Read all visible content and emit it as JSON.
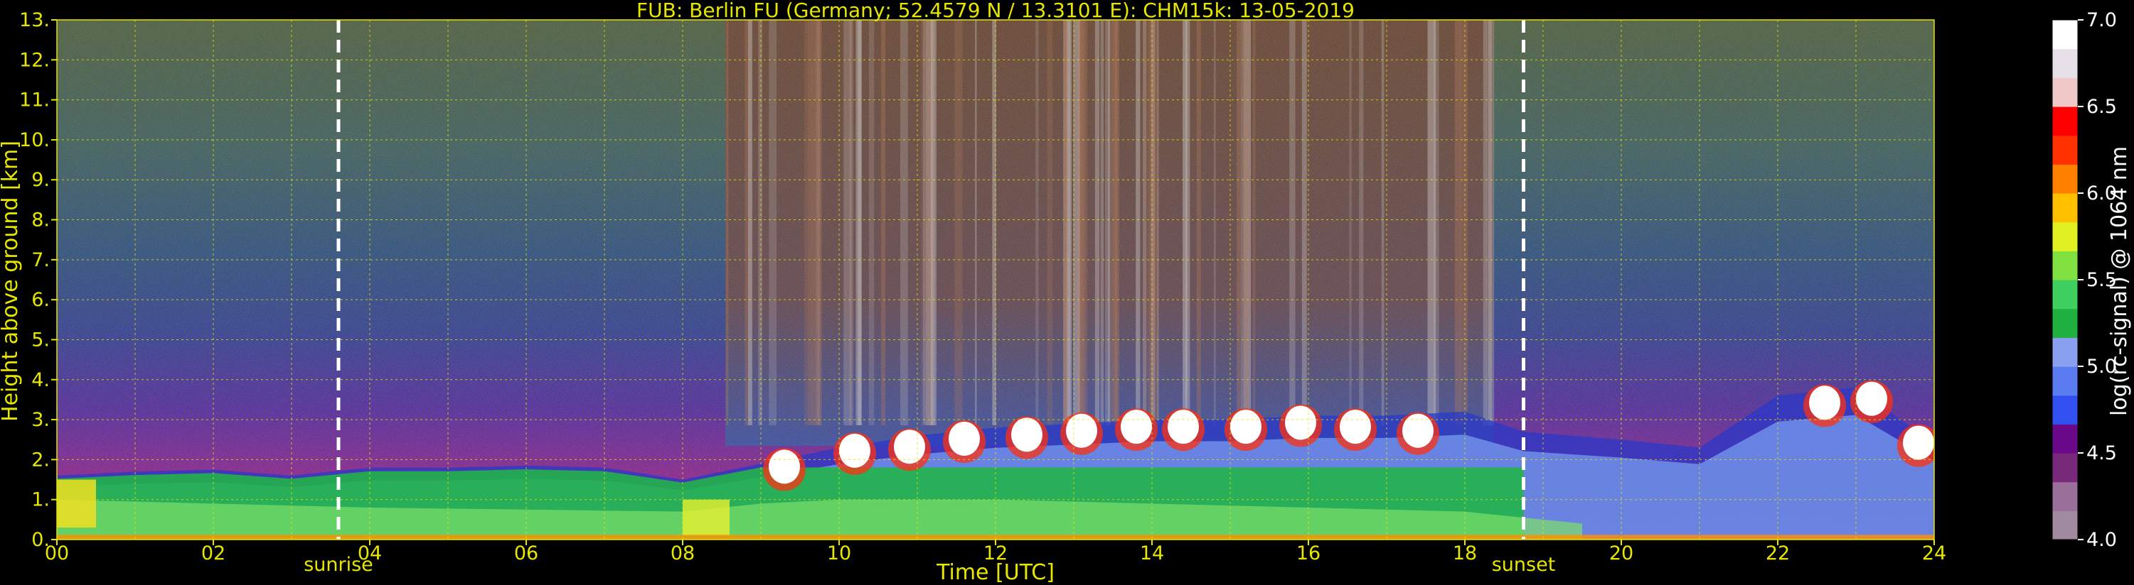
{
  "title": "FUB: Berlin FU (Germany; 52.4579 N / 13.3101 E):    CHM15k: 13-05-2019",
  "chart_data": {
    "type": "heatmap",
    "title": "FUB: Berlin FU (Germany; 52.4579 N / 13.3101 E):    CHM15k: 13-05-2019",
    "xlabel": "Time [UTC]",
    "ylabel": "Height above ground [km]",
    "xlim": [
      0,
      24
    ],
    "ylim": [
      0,
      13
    ],
    "x_tick_labels": [
      "00",
      "02",
      "04",
      "06",
      "08",
      "10",
      "12",
      "14",
      "16",
      "18",
      "20",
      "22",
      "24"
    ],
    "x_ticks": [
      0,
      2,
      4,
      6,
      8,
      10,
      12,
      14,
      16,
      18,
      20,
      22,
      24
    ],
    "y_tick_labels": [
      "0.",
      "1.",
      "2.",
      "3.",
      "4.",
      "5.",
      "6.",
      "7.",
      "8.",
      "9.",
      "10.",
      "11.",
      "12.",
      "13."
    ],
    "y_ticks": [
      0,
      1,
      2,
      3,
      4,
      5,
      6,
      7,
      8,
      9,
      10,
      11,
      12,
      13
    ],
    "grid": true,
    "annotations": [
      {
        "label": "sunrise",
        "x": 3.6
      },
      {
        "label": "sunset",
        "x": 18.75
      }
    ],
    "colorbar": {
      "label": "log(rc-signal) @ 1064 nm",
      "range": [
        4.0,
        7.0
      ],
      "tick_labels": [
        "4.0",
        "4.5",
        "5.0",
        "5.5",
        "6.0",
        "6.5",
        "7.0"
      ],
      "ticks": [
        4.0,
        4.5,
        5.0,
        5.5,
        6.0,
        6.5,
        7.0
      ],
      "colors": [
        "#a08aa0",
        "#9a6f9a",
        "#7a2a7a",
        "#6a0a8a",
        "#3050f0",
        "#5a7cf0",
        "#8aa0f0",
        "#20b040",
        "#40d060",
        "#80e040",
        "#e0f020",
        "#ffc000",
        "#ff8000",
        "#ff3000",
        "#ff0000",
        "#f0c8c8",
        "#e8e0e8",
        "#ffffff"
      ]
    },
    "boundary_layer": [
      {
        "t": 0,
        "h": 1.6
      },
      {
        "t": 1,
        "h": 1.7
      },
      {
        "t": 2,
        "h": 1.75
      },
      {
        "t": 3,
        "h": 1.6
      },
      {
        "t": 4,
        "h": 1.8
      },
      {
        "t": 5,
        "h": 1.8
      },
      {
        "t": 6,
        "h": 1.85
      },
      {
        "t": 7,
        "h": 1.8
      },
      {
        "t": 8,
        "h": 1.5
      },
      {
        "t": 9,
        "h": 1.9
      },
      {
        "t": 10,
        "h": 2.3
      },
      {
        "t": 11,
        "h": 2.6
      },
      {
        "t": 12,
        "h": 2.8
      },
      {
        "t": 13,
        "h": 2.9
      },
      {
        "t": 14,
        "h": 3.0
      },
      {
        "t": 15,
        "h": 3.0
      },
      {
        "t": 16,
        "h": 3.1
      },
      {
        "t": 17,
        "h": 3.1
      },
      {
        "t": 18,
        "h": 3.2
      },
      {
        "t": 18.75,
        "h": 2.7
      },
      {
        "t": 20,
        "h": 2.5
      },
      {
        "t": 21,
        "h": 2.3
      },
      {
        "t": 22,
        "h": 3.6
      },
      {
        "t": 23,
        "h": 3.8
      },
      {
        "t": 24,
        "h": 2.4
      }
    ],
    "cloud_patches": [
      {
        "t": 9.3,
        "h": 2.0
      },
      {
        "t": 10.2,
        "h": 2.4
      },
      {
        "t": 10.9,
        "h": 2.5
      },
      {
        "t": 11.6,
        "h": 2.7
      },
      {
        "t": 12.4,
        "h": 2.8
      },
      {
        "t": 13.1,
        "h": 2.9
      },
      {
        "t": 13.8,
        "h": 3.0
      },
      {
        "t": 14.4,
        "h": 3.0
      },
      {
        "t": 15.2,
        "h": 3.0
      },
      {
        "t": 15.9,
        "h": 3.1
      },
      {
        "t": 16.6,
        "h": 3.0
      },
      {
        "t": 17.4,
        "h": 2.9
      },
      {
        "t": 22.6,
        "h": 3.6
      },
      {
        "t": 23.2,
        "h": 3.7
      },
      {
        "t": 23.8,
        "h": 2.6
      }
    ]
  }
}
